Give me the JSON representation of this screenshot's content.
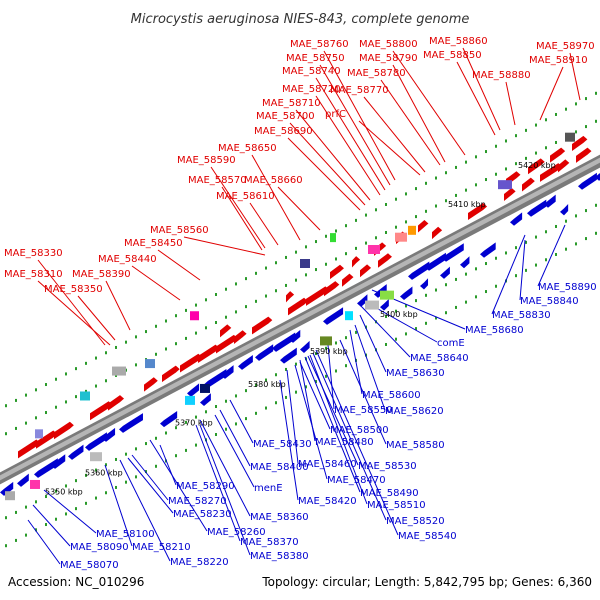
{
  "title": "Microcystis aeruginosa NIES-843, complete genome",
  "footer": {
    "accession": "Accession: NC_010296",
    "summary": "Topology: circular; Length: 5,842,795 bp; Genes: 6,360"
  },
  "colors": {
    "forward": "#e00000",
    "reverse": "#0000d0",
    "backbone": "#888888"
  },
  "ticks": [
    "5350 kbp",
    "5360 kbp",
    "5370 kbp",
    "5380 kbp",
    "5390 kbp",
    "5400 kbp",
    "5410 kbp",
    "5420 kbp"
  ],
  "forward_genes": [
    "MAE_58330",
    "MAE_58310",
    "MAE_58350",
    "MAE_58390",
    "MAE_58440",
    "MAE_58450",
    "MAE_58560",
    "MAE_58570",
    "MAE_58590",
    "MAE_58610",
    "MAE_58650",
    "MAE_58660",
    "MAE_58690",
    "MAE_58700",
    "MAE_58710",
    "MAE_58720",
    "MAE_58740",
    "MAE_58750",
    "MAE_58760",
    "prfC",
    "MAE_58770",
    "MAE_58780",
    "MAE_58790",
    "MAE_58800",
    "MAE_58850",
    "MAE_58860",
    "MAE_58880",
    "MAE_58910",
    "MAE_58970"
  ],
  "reverse_genes": [
    "MAE_58070",
    "MAE_58090",
    "MAE_58100",
    "MAE_58210",
    "MAE_58220",
    "MAE_58230",
    "MAE_58260",
    "MAE_58270",
    "MAE_58290",
    "MAE_58360",
    "MAE_58370",
    "MAE_58380",
    "MAE_58400",
    "menE",
    "MAE_58420",
    "MAE_58430",
    "MAE_58460",
    "MAE_58470",
    "MAE_58480",
    "MAE_58490",
    "MAE_58500",
    "MAE_58510",
    "MAE_58520",
    "MAE_58530",
    "MAE_58540",
    "MAE_58550",
    "MAE_58580",
    "MAE_58600",
    "MAE_58620",
    "MAE_58630",
    "MAE_58640",
    "comE",
    "MAE_58680",
    "MAE_58830",
    "MAE_58840",
    "MAE_58890"
  ]
}
